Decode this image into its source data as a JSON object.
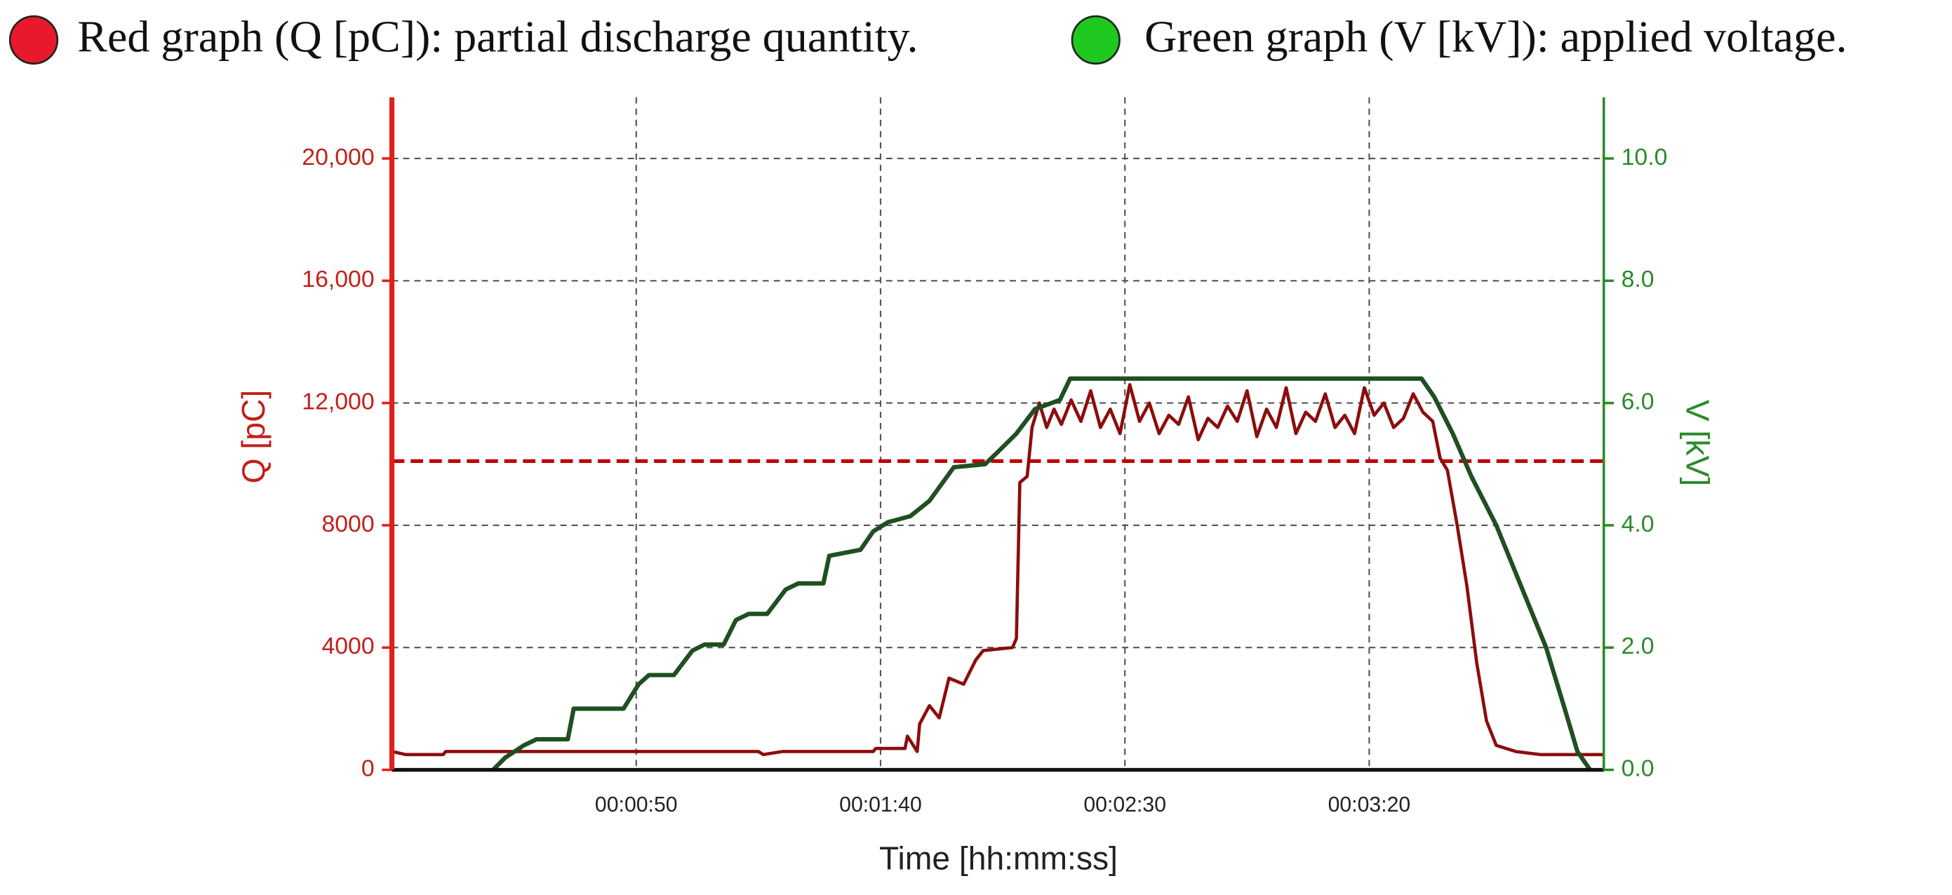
{
  "chart_data": {
    "type": "line",
    "xlabel": "Time  [hh:mm:ss]",
    "ylabel": "Q [pC]",
    "y2label": "V [kV]",
    "xlim": [
      0,
      248
    ],
    "xticks": [
      {
        "value": 50,
        "label": "00:00:50"
      },
      {
        "value": 100,
        "label": "00:01:40"
      },
      {
        "value": 150,
        "label": "00:02:30"
      },
      {
        "value": 200,
        "label": "00:03:20"
      }
    ],
    "ylim": [
      0,
      22000
    ],
    "yticks": [
      0,
      4000,
      8000,
      {
        "value": 12000,
        "label": "12,000"
      },
      {
        "value": 16000,
        "label": "16,000"
      },
      {
        "value": 20000,
        "label": "20,000"
      }
    ],
    "y2lim": [
      0,
      11
    ],
    "y2ticks": [
      {
        "value": 0,
        "label": "0.0"
      },
      {
        "value": 2,
        "label": "2.0"
      },
      {
        "value": 4,
        "label": "4.0"
      },
      {
        "value": 6,
        "label": "6.0"
      },
      {
        "value": 8,
        "label": "8.0"
      },
      {
        "value": 10,
        "label": "10.0"
      }
    ],
    "grid": true,
    "reference_lines": [
      {
        "axis": "y",
        "value": 10100,
        "color": "#c00000"
      }
    ],
    "series": [
      {
        "name": "Red graph (Q [pC]): partial discharge quantity.",
        "color": "#8b0d0d",
        "legend_color": "#e8192c",
        "x": [
          0,
          2.8,
          10.5,
          11,
          75,
          76,
          80,
          98.5,
          99,
          105,
          105.5,
          107.5,
          108,
          110,
          112,
          114,
          117,
          119.5,
          121,
          127,
          127.8,
          128.5,
          130,
          131,
          132.5,
          134,
          135.5,
          137,
          139,
          141,
          143,
          145,
          147,
          149,
          151,
          153,
          155,
          157,
          159,
          161,
          163,
          165,
          167,
          169,
          171,
          173,
          175,
          177,
          179,
          181,
          183,
          185,
          187,
          189,
          191,
          193,
          195,
          197,
          199,
          201,
          203,
          205,
          207,
          209,
          211,
          213,
          214.5,
          216,
          218,
          220,
          222,
          224,
          226,
          230,
          235,
          248
        ],
        "values": [
          600,
          500,
          500,
          600,
          600,
          500,
          600,
          600,
          700,
          700,
          1100,
          600,
          1500,
          2100,
          1700,
          3000,
          2800,
          3600,
          3900,
          4000,
          4300,
          9400,
          9600,
          11200,
          12000,
          11200,
          11800,
          11300,
          12100,
          11400,
          12400,
          11200,
          11800,
          11000,
          12600,
          11400,
          12000,
          11000,
          11600,
          11300,
          12200,
          10800,
          11500,
          11200,
          11900,
          11400,
          12400,
          10900,
          11800,
          11200,
          12500,
          11000,
          11700,
          11400,
          12300,
          11200,
          11600,
          11000,
          12500,
          11600,
          12000,
          11200,
          11500,
          12300,
          11700,
          11400,
          10200,
          9800,
          8000,
          6000,
          3500,
          1600,
          800,
          600,
          500,
          500
        ]
      },
      {
        "name": "Green graph (V [kV]): applied voltage.",
        "color": "#1f4f22",
        "legend_color": "#1ec81e",
        "axis": "y2",
        "x": [
          20.7,
          23.2,
          27,
          29.6,
          36,
          37.2,
          47.4,
          50.5,
          52.6,
          57.7,
          61.5,
          64,
          67.9,
          70.4,
          73,
          76.8,
          80.6,
          83.2,
          88.3,
          89.5,
          95.9,
          98.5,
          101.5,
          106.1,
          110,
          115,
          121.4,
          124,
          127.8,
          131.6,
          136.7,
          138.8,
          210.7,
          213.3,
          217.1,
          220.9,
          226,
          231.1,
          236.2,
          240,
          242.6,
          245.2
        ],
        "values": [
          0,
          0.2,
          0.4,
          0.5,
          0.5,
          1.0,
          1.0,
          1.4,
          1.55,
          1.55,
          1.95,
          2.05,
          2.05,
          2.45,
          2.55,
          2.55,
          2.95,
          3.05,
          3.05,
          3.5,
          3.6,
          3.9,
          4.05,
          4.15,
          4.4,
          4.95,
          5.0,
          5.2,
          5.5,
          5.9,
          6.05,
          6.4,
          6.4,
          6.1,
          5.5,
          4.8,
          4.0,
          3.0,
          2.0,
          1.0,
          0.3,
          0
        ]
      }
    ]
  }
}
